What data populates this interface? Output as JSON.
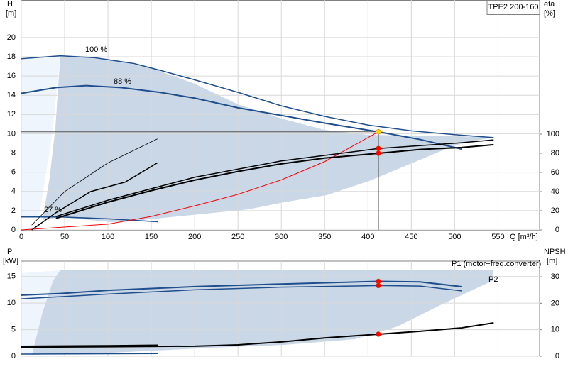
{
  "chart_data": [
    {
      "type": "line",
      "title": "TPE2 200-160",
      "y_label": "H",
      "y_unit": "[m]",
      "y2_label": "eta",
      "y2_unit": "[%]",
      "x_label": "Q [m³/h]",
      "xlim": [
        0,
        598
      ],
      "xticks": [
        0,
        50,
        100,
        150,
        200,
        250,
        300,
        350,
        400,
        450,
        500,
        550
      ],
      "ylim": [
        0,
        23.9
      ],
      "yticks": [
        0,
        2,
        4,
        6,
        8,
        10,
        12,
        14,
        16,
        18,
        20
      ],
      "y2lim": [
        0,
        240
      ],
      "y2ticks": [
        0,
        20,
        40,
        60,
        80,
        100
      ],
      "grid": true,
      "series": [
        {
          "color": "#1f4e8c",
          "width": 1.5,
          "x": [
            0,
            45,
            85,
            130,
            160,
            200,
            250,
            300,
            350,
            400,
            450,
            500,
            545
          ],
          "values": [
            17.8,
            18.1,
            17.9,
            17.3,
            16.6,
            15.6,
            14.3,
            12.9,
            11.8,
            10.9,
            10.3,
            9.9,
            9.6
          ]
        },
        {
          "color": "#1f4e8c",
          "width": 2,
          "x": [
            0,
            40,
            75,
            115,
            160,
            200,
            250,
            300,
            350,
            412,
            460,
            508
          ],
          "values": [
            14.2,
            14.8,
            15,
            14.8,
            14.3,
            13.7,
            12.7,
            11.9,
            11.1,
            10.2,
            9.4,
            8.4
          ]
        },
        {
          "color": "#1f4e8c",
          "width": 1.5,
          "x": [
            0,
            45,
            100,
            158
          ],
          "values": [
            1.35,
            1.35,
            1.15,
            0.85
          ]
        },
        {
          "color": "#ff0000",
          "width": 1,
          "x": [
            0,
            100,
            150,
            200,
            250,
            300,
            350,
            412
          ],
          "values": [
            0,
            0.6,
            1.4,
            2.5,
            3.7,
            5.2,
            7.1,
            10.2
          ]
        },
        {
          "color": "#000000",
          "width": 2,
          "axis": "y2",
          "x": [
            40,
            100,
            150,
            200,
            250,
            300,
            350,
            412,
            460,
            508,
            545
          ],
          "values": [
            12,
            29,
            41,
            52,
            61,
            69,
            75,
            80,
            84,
            86,
            89
          ]
        },
        {
          "color": "#000000",
          "width": 1.5,
          "axis": "y2",
          "x": [
            40,
            100,
            200,
            300,
            412,
            508,
            545
          ],
          "values": [
            14,
            31,
            55,
            72,
            85,
            91,
            94
          ]
        },
        {
          "color": "#000000",
          "width": 0.8,
          "axis": "y2",
          "x": [
            12,
            50,
            100,
            157
          ],
          "values": [
            5,
            40,
            70,
            95
          ]
        },
        {
          "color": "#000000",
          "width": 1.5,
          "axis": "y2",
          "x": [
            12,
            40,
            80,
            120,
            157
          ],
          "values": [
            0,
            18,
            40,
            50,
            70
          ]
        }
      ],
      "points": [
        {
          "x": 412,
          "y": 10.2,
          "color": "#ffd700"
        },
        {
          "x": 412,
          "y": 85,
          "axis": "y2",
          "color": "#ff0000"
        },
        {
          "x": 412,
          "y": 80,
          "axis": "y2",
          "color": "#ff0000"
        }
      ],
      "annotations": [
        "100 %",
        "88 %",
        "27 %"
      ]
    },
    {
      "type": "line",
      "y_label": "P",
      "y_unit": "[kW]",
      "y2_label": "NPSH",
      "y2_unit": "[m]",
      "xlim": [
        0,
        598
      ],
      "ylim": [
        0,
        17.9
      ],
      "yticks": [
        0,
        5,
        10,
        15
      ],
      "y2lim": [
        0,
        35.9
      ],
      "y2ticks": [
        0,
        10,
        20,
        30
      ],
      "grid": true,
      "series": [
        {
          "color": "#1f4e8c",
          "width": 2,
          "x": [
            0,
            45,
            100,
            200,
            300,
            412,
            460,
            508
          ],
          "values": [
            11.5,
            11.8,
            12.4,
            13.1,
            13.6,
            14.1,
            14,
            13.1
          ]
        },
        {
          "color": "#1f4e8c",
          "width": 1.5,
          "x": [
            0,
            45,
            100,
            200,
            300,
            412,
            460,
            508
          ],
          "values": [
            10.8,
            11.2,
            11.7,
            12.5,
            13,
            13.3,
            13.2,
            12.3
          ]
        },
        {
          "color": "#000000",
          "width": 1.5,
          "x": [
            0,
            100,
            158
          ],
          "values": [
            1.9,
            2,
            2.1
          ]
        },
        {
          "color": "#1f4e8c",
          "width": 1.5,
          "x": [
            0,
            158
          ],
          "values": [
            0.4,
            0.5
          ]
        },
        {
          "color": "#000000",
          "width": 2,
          "axis": "y2",
          "x": [
            0,
            100,
            200,
            250,
            300,
            350,
            412,
            460,
            508,
            545
          ],
          "values": [
            3.4,
            3.6,
            3.8,
            4.3,
            5.4,
            6.9,
            8.3,
            9.4,
            10.7,
            12.6
          ]
        }
      ],
      "points": [
        {
          "x": 412,
          "y": 14.1,
          "color": "#ff0000"
        },
        {
          "x": 412,
          "y": 13.3,
          "color": "#ff0000"
        },
        {
          "x": 412,
          "y": 8.3,
          "axis": "y2",
          "color": "#ff0000"
        }
      ],
      "annotations": [
        "P1 (motor+freq.converter)",
        "P2"
      ]
    }
  ]
}
